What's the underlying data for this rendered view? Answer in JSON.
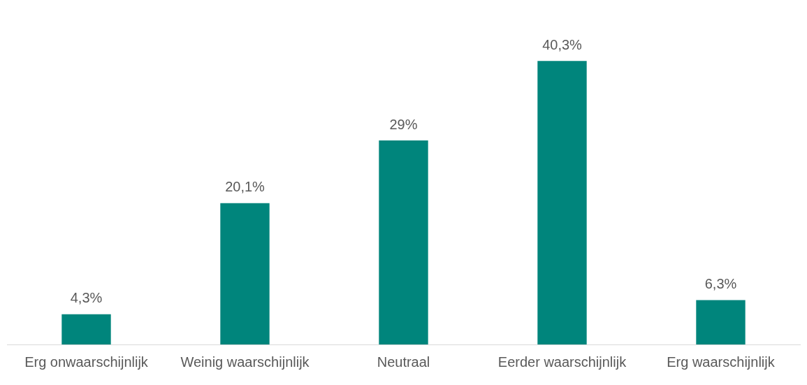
{
  "chart_data": {
    "type": "bar",
    "categories": [
      "Erg onwaarschijnlijk",
      "Weinig waarschijnlijk",
      "Neutraal",
      "Eerder waarschijnlijk",
      "Erg waarschijnlijk"
    ],
    "values": [
      4.3,
      20.1,
      29,
      40.3,
      6.3
    ],
    "value_labels": [
      "4,3%",
      "20,1%",
      "29%",
      "40,3%",
      "6,3%"
    ],
    "color": "#00857c",
    "grid": false,
    "legend": false
  }
}
